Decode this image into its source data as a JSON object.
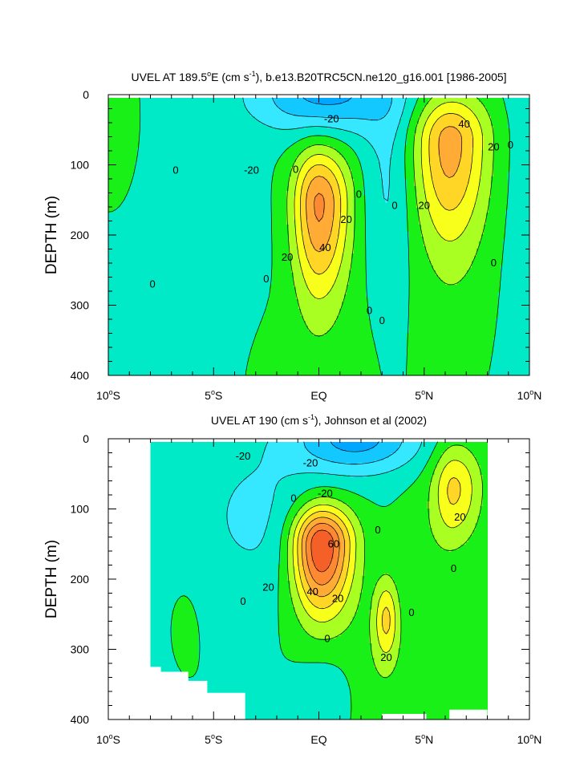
{
  "chart_data": [
    {
      "type": "contour",
      "title_parts": [
        "UVEL AT 189.5",
        "o",
        "E (cm s",
        "-1",
        "), b.e13.B20TRC5CN.ne120_g16.001 [1986-2005]"
      ],
      "ylabel": "DEPTH (m)",
      "xlim": [
        -10,
        10
      ],
      "ylim": [
        0,
        400
      ],
      "y_reversed": true,
      "x_ticks": [
        {
          "value": -10,
          "num": "10",
          "deg": "o",
          "hemi": "S"
        },
        {
          "value": -5,
          "num": "5",
          "deg": "o",
          "hemi": "S"
        },
        {
          "value": 0,
          "num": "EQ",
          "deg": "",
          "hemi": ""
        },
        {
          "value": 5,
          "num": "5",
          "deg": "o",
          "hemi": "N"
        },
        {
          "value": 10,
          "num": "10",
          "deg": "o",
          "hemi": "N"
        }
      ],
      "y_ticks": [
        "0",
        "100",
        "200",
        "300",
        "400"
      ],
      "y_tick_values": [
        0,
        100,
        200,
        300,
        400
      ],
      "data_x_range": [
        -10,
        10
      ],
      "contour_interval": 10,
      "features": [
        {
          "kind": "eastward_core",
          "lat": 0.0,
          "depth": 155,
          "peak": 52
        },
        {
          "kind": "eastward_core",
          "lat": 6.2,
          "depth": 65,
          "peak": 45
        },
        {
          "kind": "westward_surface",
          "lat": 0.0,
          "depth": 15,
          "peak": -32
        }
      ],
      "contour_labels": [
        {
          "text": "0",
          "lat": -6.8,
          "depth": 108
        },
        {
          "text": "-20",
          "lat": -3.2,
          "depth": 108
        },
        {
          "text": "-20",
          "lat": 0.6,
          "depth": 35
        },
        {
          "text": "0",
          "lat": -1.1,
          "depth": 107
        },
        {
          "text": "0",
          "lat": 1.9,
          "depth": 142
        },
        {
          "text": "20",
          "lat": 1.3,
          "depth": 178
        },
        {
          "text": "40",
          "lat": 0.3,
          "depth": 218
        },
        {
          "text": "20",
          "lat": -1.5,
          "depth": 232
        },
        {
          "text": "0",
          "lat": -2.5,
          "depth": 263
        },
        {
          "text": "0",
          "lat": -7.9,
          "depth": 270
        },
        {
          "text": "0",
          "lat": 2.4,
          "depth": 308
        },
        {
          "text": "0",
          "lat": 3.0,
          "depth": 322
        },
        {
          "text": "0",
          "lat": 3.6,
          "depth": 158
        },
        {
          "text": "20",
          "lat": 5.0,
          "depth": 158
        },
        {
          "text": "40",
          "lat": 6.9,
          "depth": 42
        },
        {
          "text": "20",
          "lat": 8.3,
          "depth": 75
        },
        {
          "text": "0",
          "lat": 9.1,
          "depth": 72
        },
        {
          "text": "0",
          "lat": 8.3,
          "depth": 240
        }
      ]
    },
    {
      "type": "contour",
      "title_parts": [
        "UVEL AT 190 (cm s",
        "-1",
        "), Johnson et al (2002)"
      ],
      "ylabel": "DEPTH (m)",
      "xlim": [
        -10,
        10
      ],
      "ylim": [
        0,
        400
      ],
      "y_reversed": true,
      "x_ticks": [
        {
          "value": -10,
          "num": "10",
          "deg": "o",
          "hemi": "S"
        },
        {
          "value": -5,
          "num": "5",
          "deg": "o",
          "hemi": "S"
        },
        {
          "value": 0,
          "num": "EQ",
          "deg": "",
          "hemi": ""
        },
        {
          "value": 5,
          "num": "5",
          "deg": "o",
          "hemi": "N"
        },
        {
          "value": 10,
          "num": "10",
          "deg": "o",
          "hemi": "N"
        }
      ],
      "y_ticks": [
        "0",
        "100",
        "200",
        "300",
        "400"
      ],
      "y_tick_values": [
        0,
        100,
        200,
        300,
        400
      ],
      "data_x_range": [
        -8,
        8
      ],
      "contour_interval": 10,
      "features": [
        {
          "kind": "eastward_core",
          "lat": 0.1,
          "depth": 150,
          "peak": 72
        },
        {
          "kind": "eastward_core",
          "lat": 6.4,
          "depth": 70,
          "peak": 32
        },
        {
          "kind": "eastward_core",
          "lat": 3.2,
          "depth": 255,
          "peak": 28
        },
        {
          "kind": "westward_surface",
          "lat": 1.9,
          "depth": 15,
          "peak": -34
        }
      ],
      "contour_labels": [
        {
          "text": "-20",
          "lat": -3.6,
          "depth": 25
        },
        {
          "text": "-20",
          "lat": -0.4,
          "depth": 35
        },
        {
          "text": "-20",
          "lat": 0.3,
          "depth": 78
        },
        {
          "text": "0",
          "lat": -1.2,
          "depth": 85
        },
        {
          "text": "0",
          "lat": 2.8,
          "depth": 130
        },
        {
          "text": "60",
          "lat": 0.7,
          "depth": 150
        },
        {
          "text": "40",
          "lat": -0.3,
          "depth": 218
        },
        {
          "text": "20",
          "lat": -2.4,
          "depth": 212
        },
        {
          "text": "20",
          "lat": 0.9,
          "depth": 228
        },
        {
          "text": "0",
          "lat": -3.6,
          "depth": 232
        },
        {
          "text": "0",
          "lat": 0.4,
          "depth": 285
        },
        {
          "text": "20",
          "lat": 3.2,
          "depth": 312
        },
        {
          "text": "0",
          "lat": 4.4,
          "depth": 248
        },
        {
          "text": "20",
          "lat": 6.7,
          "depth": 112
        },
        {
          "text": "0",
          "lat": 6.4,
          "depth": 185
        }
      ]
    }
  ],
  "colors": {
    "levels": [
      {
        "lo": -999,
        "hi": -30,
        "color": "#00a6ff"
      },
      {
        "lo": -30,
        "hi": -20,
        "color": "#13c8ff"
      },
      {
        "lo": -20,
        "hi": -10,
        "color": "#36e8ff"
      },
      {
        "lo": -10,
        "hi": 0,
        "color": "#00eac8"
      },
      {
        "lo": 0,
        "hi": 10,
        "color": "#18f018"
      },
      {
        "lo": 10,
        "hi": 20,
        "color": "#a9ff22"
      },
      {
        "lo": 20,
        "hi": 30,
        "color": "#f7ff1a"
      },
      {
        "lo": 30,
        "hi": 40,
        "color": "#ffd526"
      },
      {
        "lo": 40,
        "hi": 50,
        "color": "#ffab36"
      },
      {
        "lo": 50,
        "hi": 60,
        "color": "#fd8a32"
      },
      {
        "lo": 60,
        "hi": 70,
        "color": "#f46028"
      },
      {
        "lo": 70,
        "hi": 999,
        "color": "#eb301e"
      }
    ]
  }
}
